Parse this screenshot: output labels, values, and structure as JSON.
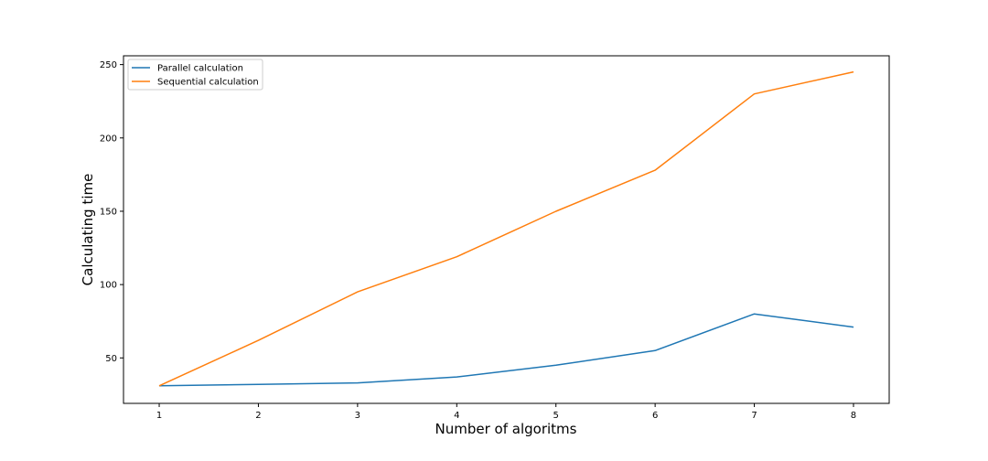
{
  "chart_data": {
    "type": "line",
    "title": "",
    "xlabel": "Number of algoritms",
    "ylabel": "Calculating time",
    "x": [
      1,
      2,
      3,
      4,
      5,
      6,
      7,
      8
    ],
    "xticks": [
      "1",
      "2",
      "3",
      "4",
      "5",
      "6",
      "7",
      "8"
    ],
    "yticks": [
      50,
      100,
      150,
      200,
      250
    ],
    "xlim": [
      0.64,
      8.36
    ],
    "ylim": [
      19,
      256
    ],
    "grid": false,
    "legend_position": "top-left",
    "series": [
      {
        "name": "Parallel calculation",
        "color": "#1f77b4",
        "values": [
          31,
          32,
          33,
          37,
          45,
          55,
          80,
          71
        ]
      },
      {
        "name": "Sequential calculation",
        "color": "#ff7f0e",
        "values": [
          31,
          62,
          95,
          119,
          150,
          178,
          230,
          245
        ]
      }
    ]
  }
}
